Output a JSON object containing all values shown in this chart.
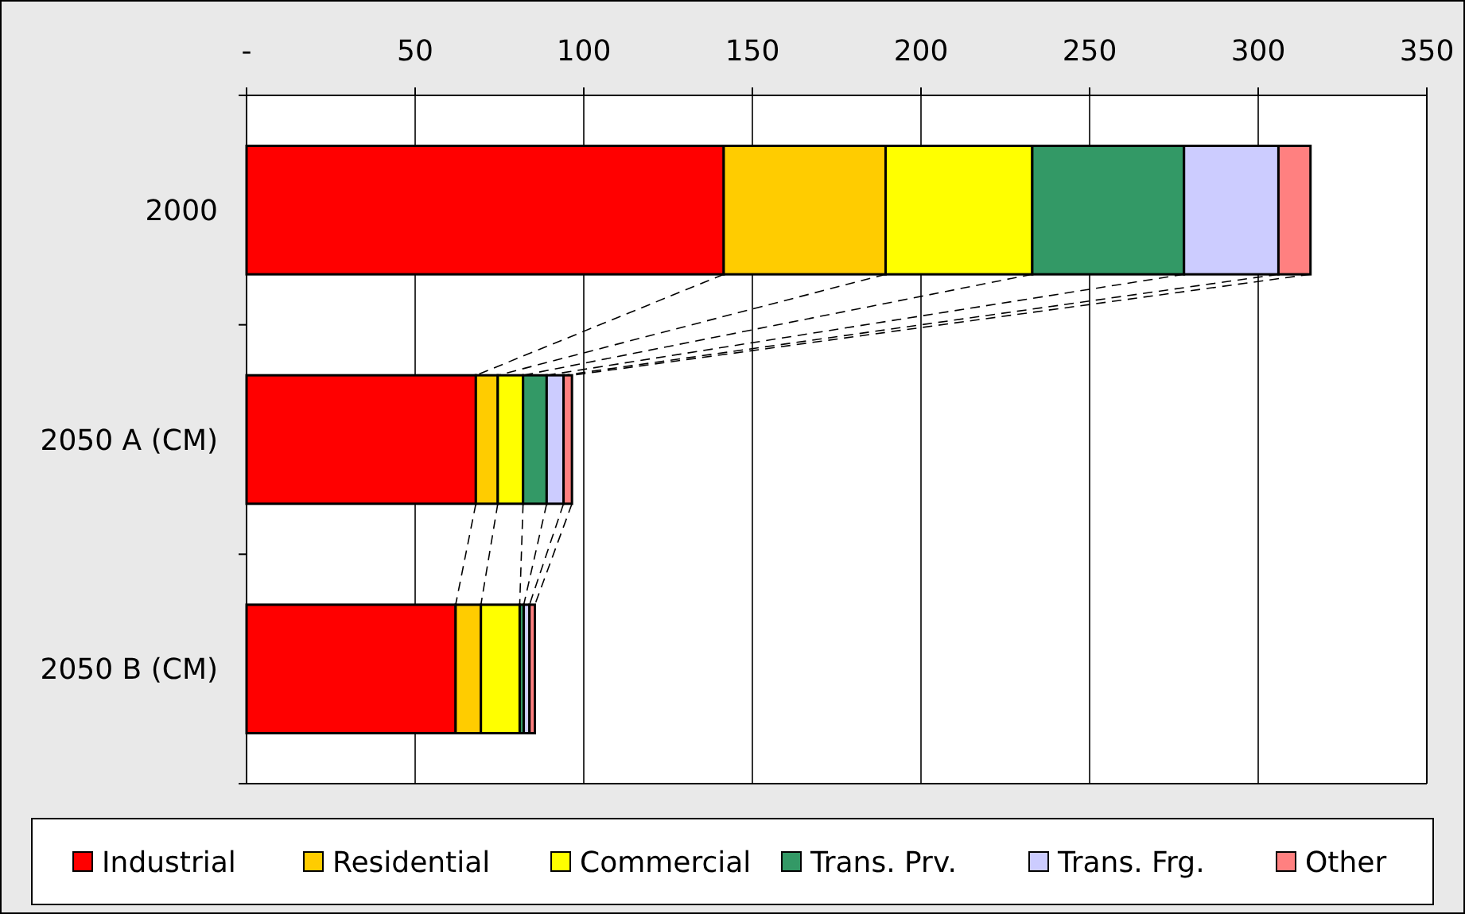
{
  "chart_data": {
    "type": "bar",
    "orientation": "horizontal",
    "stacked": true,
    "categories": [
      "2000",
      "2050 A (CM)",
      "2050 B (CM)"
    ],
    "series": [
      {
        "name": "Industrial",
        "color": "#ff0000",
        "values": [
          141.5,
          68,
          62
        ]
      },
      {
        "name": "Residential",
        "color": "#ffcc00",
        "values": [
          48,
          6.5,
          7.5
        ]
      },
      {
        "name": "Commercial",
        "color": "#ffff00",
        "values": [
          43.5,
          7.5,
          11.5
        ]
      },
      {
        "name": "Trans. Prv.",
        "color": "#339966",
        "values": [
          45,
          7,
          1.2
        ]
      },
      {
        "name": "Trans. Frg.",
        "color": "#ccccff",
        "values": [
          28,
          5,
          1.7
        ]
      },
      {
        "name": "Other",
        "color": "#ff8080",
        "values": [
          9.5,
          2.5,
          1.6
        ]
      }
    ],
    "xlim": [
      0,
      350
    ],
    "xticks": [
      {
        "value": 0,
        "label": "-"
      },
      50,
      100,
      150,
      200,
      250,
      300,
      350
    ],
    "grid": "x",
    "legend": "bottom"
  }
}
